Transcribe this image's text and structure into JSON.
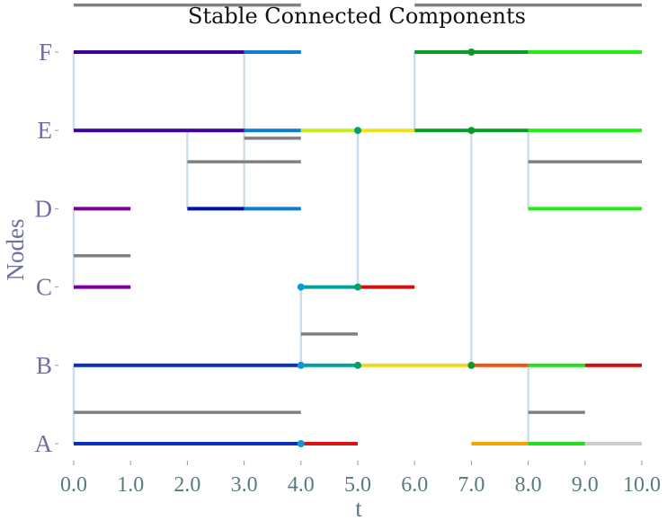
{
  "chart_data": {
    "type": "timeline",
    "title": "Stable Connected Components",
    "xlabel": "t",
    "ylabel": "Nodes",
    "xlim": [
      0,
      10
    ],
    "x_ticks": [
      "0.0",
      "1.0",
      "2.0",
      "3.0",
      "4.0",
      "5.0",
      "6.0",
      "7.0",
      "8.0",
      "9.0",
      "10.0"
    ],
    "nodes": [
      "A",
      "B",
      "C",
      "D",
      "E",
      "F"
    ],
    "colors": {
      "node_label": "#6f6fa0",
      "tick_label": "#5a7a80",
      "gray_link": "#808080",
      "vertical_link": "#cddde9"
    },
    "segments": [
      {
        "node": "F",
        "t0": 0,
        "t1": 3,
        "color": "#3d0099"
      },
      {
        "node": "F",
        "t0": 3,
        "t1": 4,
        "color": "#0a7fd0"
      },
      {
        "node": "F",
        "t0": 6,
        "t1": 8,
        "color": "#0a9a2a"
      },
      {
        "node": "F",
        "t0": 8,
        "t1": 10,
        "color": "#22ee11"
      },
      {
        "node": "E",
        "t0": 0,
        "t1": 3,
        "color": "#3d0099"
      },
      {
        "node": "E",
        "t0": 3,
        "t1": 4,
        "color": "#0a7fd0"
      },
      {
        "node": "E",
        "t0": 4,
        "t1": 5,
        "color": "#c6ee22"
      },
      {
        "node": "E",
        "t0": 5,
        "t1": 6,
        "color": "#eee022"
      },
      {
        "node": "E",
        "t0": 6,
        "t1": 8,
        "color": "#0a9a2a"
      },
      {
        "node": "E",
        "t0": 8,
        "t1": 10,
        "color": "#22ee11"
      },
      {
        "node": "D",
        "t0": 0,
        "t1": 1,
        "color": "#7a0099"
      },
      {
        "node": "D",
        "t0": 2,
        "t1": 3,
        "color": "#0010aa"
      },
      {
        "node": "D",
        "t0": 3,
        "t1": 4,
        "color": "#0a7fd0"
      },
      {
        "node": "D",
        "t0": 8,
        "t1": 10,
        "color": "#22ee11"
      },
      {
        "node": "C",
        "t0": 0,
        "t1": 1,
        "color": "#7a0099"
      },
      {
        "node": "C",
        "t0": 4,
        "t1": 5,
        "color": "#00a0a0"
      },
      {
        "node": "C",
        "t0": 5,
        "t1": 6,
        "color": "#cc1111"
      },
      {
        "node": "B",
        "t0": 0,
        "t1": 4,
        "color": "#0a2ec0"
      },
      {
        "node": "B",
        "t0": 4,
        "t1": 5,
        "color": "#00a0a0"
      },
      {
        "node": "B",
        "t0": 5,
        "t1": 7,
        "color": "#eed822"
      },
      {
        "node": "B",
        "t0": 7,
        "t1": 8,
        "color": "#ee5511"
      },
      {
        "node": "B",
        "t0": 8,
        "t1": 9,
        "color": "#22dd22"
      },
      {
        "node": "B",
        "t0": 9,
        "t1": 10,
        "color": "#cc1111"
      },
      {
        "node": "A",
        "t0": 0,
        "t1": 4,
        "color": "#0a2ec0"
      },
      {
        "node": "A",
        "t0": 4,
        "t1": 5,
        "color": "#dd1111"
      },
      {
        "node": "A",
        "t0": 7,
        "t1": 8,
        "color": "#f5a500"
      },
      {
        "node": "A",
        "t0": 8,
        "t1": 9,
        "color": "#22dd22"
      },
      {
        "node": "A",
        "t0": 9,
        "t1": 10,
        "color": "#cccccc"
      }
    ],
    "gray_links": [
      {
        "y": 5.6,
        "t0": 0,
        "t1": 4
      },
      {
        "y": 5.6,
        "t0": 6,
        "t1": 10
      },
      {
        "y": 3.9,
        "t0": 3,
        "t1": 4
      },
      {
        "y": 3.6,
        "t0": 2,
        "t1": 4
      },
      {
        "y": 3.6,
        "t0": 8,
        "t1": 10
      },
      {
        "y": 2.4,
        "t0": 0,
        "t1": 1
      },
      {
        "y": 1.4,
        "t0": 4,
        "t1": 5
      },
      {
        "y": 0.4,
        "t0": 0,
        "t1": 4
      },
      {
        "y": 0.4,
        "t0": 8,
        "t1": 9
      }
    ],
    "vertical_links": [
      {
        "t": 0,
        "y0": 4,
        "y1": 5
      },
      {
        "t": 2,
        "y0": 3,
        "y1": 4
      },
      {
        "t": 3,
        "y0": 3,
        "y1": 5
      },
      {
        "t": 6,
        "y0": 4,
        "y1": 5
      },
      {
        "t": 8,
        "y0": 3,
        "y1": 4
      },
      {
        "t": 0,
        "y0": 2,
        "y1": 3
      },
      {
        "t": 4,
        "y0": 1,
        "y1": 2
      },
      {
        "t": 5,
        "y0": 2,
        "y1": 4
      },
      {
        "t": 7,
        "y0": 1,
        "y1": 4
      },
      {
        "t": 0,
        "y0": 0,
        "y1": 1
      },
      {
        "t": 8,
        "y0": 0,
        "y1": 1
      }
    ],
    "points": [
      {
        "node": "F",
        "t": 7,
        "color": "#0a9a2a"
      },
      {
        "node": "E",
        "t": 5,
        "color": "#00a070"
      },
      {
        "node": "E",
        "t": 7,
        "color": "#0a9a2a"
      },
      {
        "node": "C",
        "t": 4,
        "color": "#0a9ad0"
      },
      {
        "node": "C",
        "t": 5,
        "color": "#00a070"
      },
      {
        "node": "B",
        "t": 4,
        "color": "#0a9ad0"
      },
      {
        "node": "B",
        "t": 5,
        "color": "#00a070"
      },
      {
        "node": "B",
        "t": 7,
        "color": "#0a9a2a"
      },
      {
        "node": "A",
        "t": 4,
        "color": "#0a9ad0"
      }
    ]
  }
}
